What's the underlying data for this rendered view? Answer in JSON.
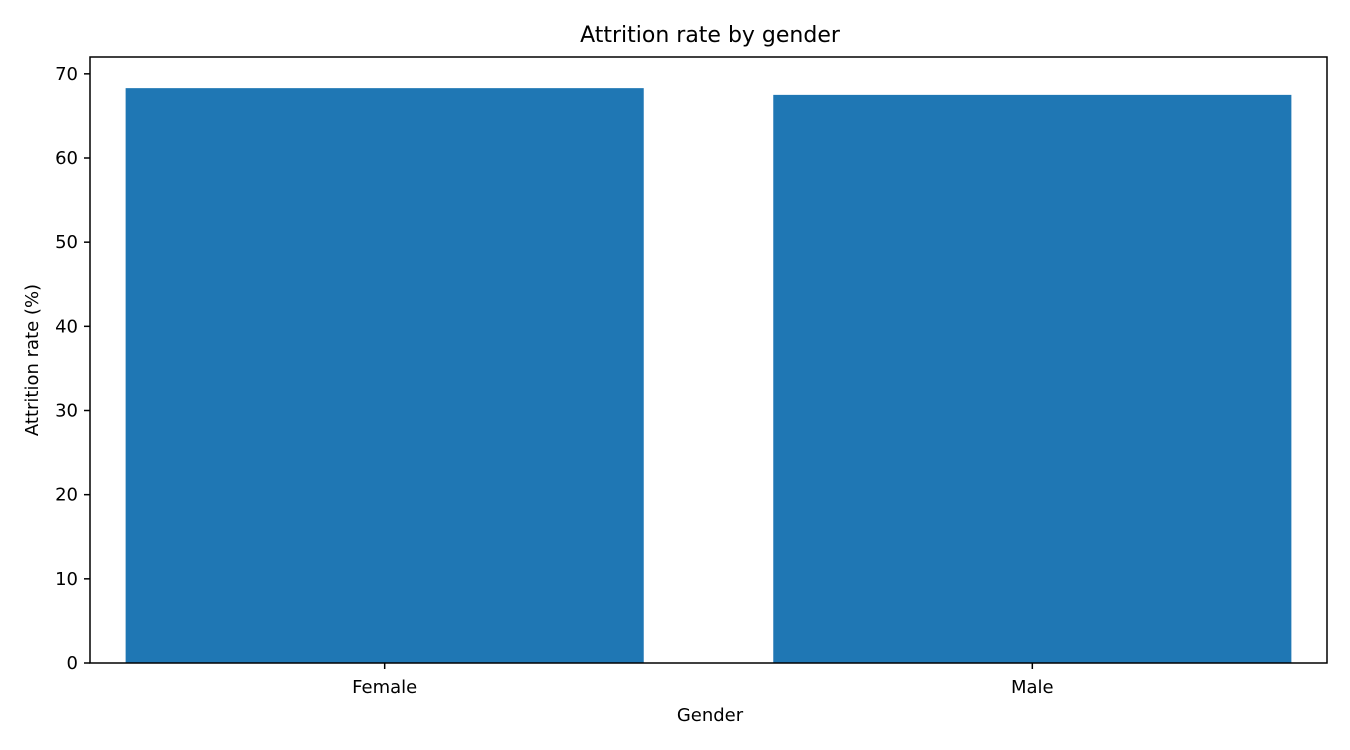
{
  "chart_data": {
    "type": "bar",
    "title": "Attrition rate by gender",
    "xlabel": "Gender",
    "ylabel": "Attrition rate (%)",
    "categories": [
      "Female",
      "Male"
    ],
    "values": [
      68.3,
      67.5
    ],
    "ylim": [
      0,
      72
    ],
    "yticks": [
      0,
      10,
      20,
      30,
      40,
      50,
      60,
      70
    ],
    "bar_color": "#1f77b4",
    "grid": false,
    "legend": false
  }
}
